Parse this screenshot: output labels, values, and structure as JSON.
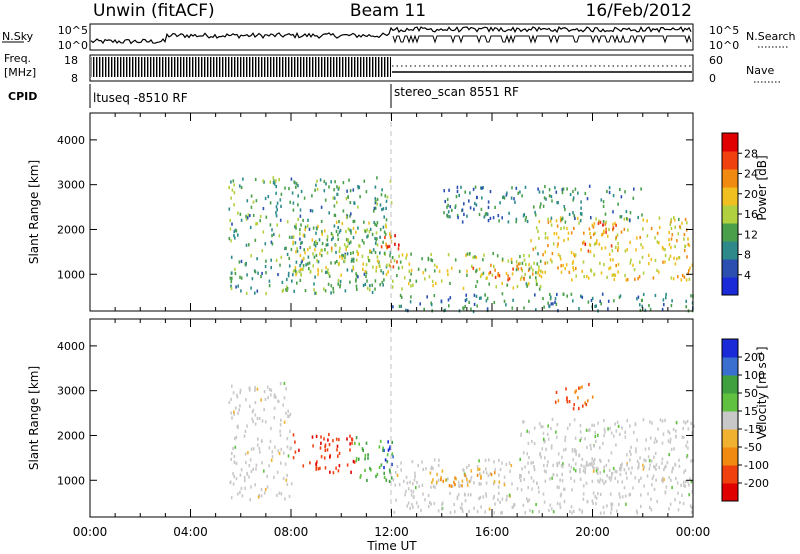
{
  "header": {
    "station": "Unwin (fitACF)",
    "beam": "Beam 11",
    "date": "16/Feb/2012"
  },
  "top_panels": {
    "nsky_label": "N.Sky",
    "nsky_ticks": [
      "10^5",
      "10^0"
    ],
    "nsearch_label": "N.Search",
    "nsearch_ticks": [
      "10^5",
      "10^0"
    ],
    "freq_label_1": "Freq.",
    "freq_label_2": "[MHz]",
    "freq_ticks": [
      "18",
      "8"
    ],
    "nave_label": "Nave",
    "nave_ticks": [
      "60",
      "0"
    ],
    "cpid_label": "CPID",
    "cpid_segments": [
      {
        "name": "ltuseq -8510 RF",
        "start_hour": 0,
        "end_hour": 12
      },
      {
        "name": "stereo_scan 8551 RF",
        "start_hour": 12,
        "end_hour": 24
      }
    ]
  },
  "x_axis": {
    "label": "Time UT",
    "ticks": [
      "00:00",
      "04:00",
      "08:00",
      "12:00",
      "16:00",
      "20:00",
      "00:00"
    ]
  },
  "colors": {
    "power_scale": [
      "#1a2ad8",
      "#2a4fb0",
      "#2e8a8a",
      "#4aa04a",
      "#b0d040",
      "#f0c020",
      "#f08a10",
      "#f04010",
      "#e00000"
    ],
    "velocity_scale": [
      "#e00000",
      "#f04010",
      "#f08a10",
      "#f0b030",
      "#c8c8c8",
      "#60c040",
      "#40a040",
      "#3a6fd0",
      "#1a2ad8"
    ],
    "ground_scatter": "#c8c8c8"
  },
  "chart_data": [
    {
      "type": "heatmap",
      "title": "",
      "xlabel": "Time UT",
      "ylabel": "Slant Range [km]",
      "xlim": [
        0,
        24
      ],
      "ylim": [
        180,
        4600
      ],
      "yticks": [
        "1000",
        "2000",
        "3000",
        "4000"
      ],
      "colorbar": {
        "label": "Power [dB]",
        "ticks": [
          "28",
          "24",
          "20",
          "16",
          "12",
          "8",
          "4"
        ],
        "range": [
          0,
          30
        ]
      },
      "regions": [
        {
          "t0": 5.5,
          "t1": 12.0,
          "r0": 600,
          "r1": 3200,
          "power": 10
        },
        {
          "t0": 8.0,
          "t1": 12.0,
          "r0": 1000,
          "r1": 2200,
          "power": 16
        },
        {
          "t0": 11.5,
          "t1": 12.3,
          "r0": 1200,
          "r1": 1900,
          "power": 26
        },
        {
          "t0": 12.0,
          "t1": 18.0,
          "r0": 700,
          "r1": 1500,
          "power": 14
        },
        {
          "t0": 15.0,
          "t1": 17.5,
          "r0": 900,
          "r1": 1300,
          "power": 22
        },
        {
          "t0": 17.5,
          "t1": 24.0,
          "r0": 900,
          "r1": 2300,
          "power": 18
        },
        {
          "t0": 19.5,
          "t1": 21.0,
          "r0": 1500,
          "r1": 2200,
          "power": 24
        },
        {
          "t0": 12.0,
          "t1": 24.0,
          "r0": 200,
          "r1": 600,
          "power": 8
        },
        {
          "t0": 14.0,
          "t1": 22.0,
          "r0": 2200,
          "r1": 3000,
          "power": 8
        }
      ]
    },
    {
      "type": "heatmap",
      "title": "",
      "xlabel": "Time UT",
      "ylabel": "Slant Range [km]",
      "xlim": [
        0,
        24
      ],
      "ylim": [
        180,
        4600
      ],
      "yticks": [
        "1000",
        "2000",
        "3000",
        "4000"
      ],
      "colorbar": {
        "label": "Velocity [m s⁻¹]",
        "ticks": [
          "200",
          "100",
          "50",
          "15",
          "-15",
          "-50",
          "-100",
          "-200"
        ],
        "range": [
          -250,
          250
        ]
      },
      "regions": [
        {
          "t0": 5.5,
          "t1": 8.0,
          "r0": 600,
          "r1": 3200,
          "velocity": 0
        },
        {
          "t0": 8.0,
          "t1": 10.5,
          "r0": 1200,
          "r1": 2100,
          "velocity": -200
        },
        {
          "t0": 10.5,
          "t1": 12.0,
          "r0": 1000,
          "r1": 2000,
          "velocity": 100
        },
        {
          "t0": 11.5,
          "t1": 12.2,
          "r0": 1300,
          "r1": 1900,
          "velocity": 220
        },
        {
          "t0": 12.0,
          "t1": 24.0,
          "r0": 300,
          "r1": 1500,
          "velocity": 0
        },
        {
          "t0": 13.5,
          "t1": 16.5,
          "r0": 900,
          "r1": 1300,
          "velocity": -80
        },
        {
          "t0": 17.0,
          "t1": 24.0,
          "r0": 1000,
          "r1": 2400,
          "velocity": 20
        },
        {
          "t0": 18.5,
          "t1": 20.0,
          "r0": 2600,
          "r1": 3200,
          "velocity": -180
        }
      ]
    }
  ]
}
